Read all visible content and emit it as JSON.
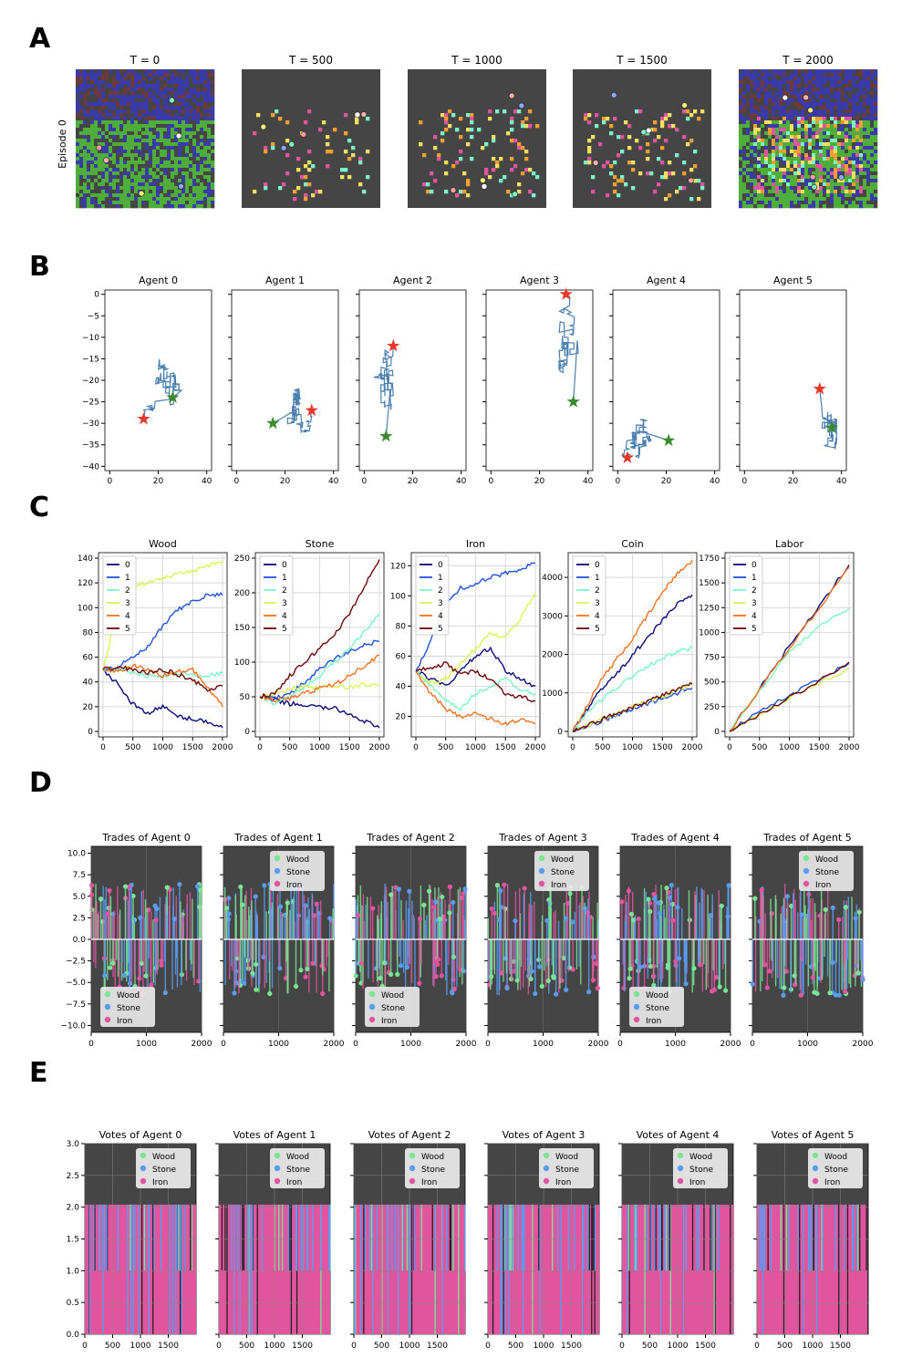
{
  "colors": {
    "dark_bg": "#454545",
    "path": "#4a7fb0",
    "star_start": "#e8382c",
    "star_end": "#3b8a2f",
    "grid": "#cccccc",
    "legend_wood": "#7be495",
    "legend_stone": "#5a9cf0",
    "legend_iron": "#e0559e",
    "agent_colors": [
      "#0d0d7a",
      "#2152d9",
      "#7cf5c9",
      "#d6f55a",
      "#f0731f",
      "#6b0a0a"
    ]
  },
  "panels": {
    "A": {
      "label": "A",
      "ylabel": "Episode 0",
      "titles": [
        "T = 0",
        "T = 500",
        "T = 1000",
        "T = 1500",
        "T = 2000"
      ]
    },
    "B": {
      "label": "B",
      "titles": [
        "Agent 0",
        "Agent 1",
        "Agent 2",
        "Agent 3",
        "Agent 4",
        "Agent 5"
      ],
      "xticks": [
        "0",
        "20",
        "40"
      ],
      "yticks": [
        "0",
        "−5",
        "−10",
        "−15",
        "−20",
        "−25",
        "−30",
        "−35",
        "−40"
      ]
    },
    "C": {
      "label": "C",
      "legend": [
        "0",
        "1",
        "2",
        "3",
        "4",
        "5"
      ]
    },
    "D": {
      "label": "D",
      "titles": [
        "Trades of Agent 0",
        "Trades of Agent 1",
        "Trades of Agent 2",
        "Trades of Agent 3",
        "Trades of Agent 4",
        "Trades of Agent 5"
      ],
      "legend": [
        "Wood",
        "Stone",
        "Iron"
      ],
      "yticks": [
        "10.0",
        "7.5",
        "5.0",
        "2.5",
        "0.0",
        "−2.5",
        "−5.0",
        "−7.5",
        "−10.0"
      ],
      "xticks": [
        "0",
        "1000",
        "2000"
      ]
    },
    "E": {
      "label": "E",
      "titles": [
        "Votes of Agent 0",
        "Votes of Agent 1",
        "Votes of Agent 2",
        "Votes of Agent 3",
        "Votes of Agent 4",
        "Votes of Agent 5"
      ],
      "legend": [
        "Wood",
        "Stone",
        "Iron"
      ],
      "yticks": [
        "3.0",
        "2.5",
        "2.0",
        "1.5",
        "1.0",
        "0.5",
        "0.0"
      ],
      "xticks": [
        "0",
        "500",
        "1000",
        "1500"
      ]
    }
  },
  "chart_data": [
    {
      "type": "line",
      "title": "Wood",
      "xlim": [
        0,
        2000
      ],
      "ylim": [
        0,
        140
      ],
      "xticks": [
        0,
        500,
        1000,
        1500,
        2000
      ],
      "yticks": [
        0,
        20,
        40,
        60,
        80,
        100,
        120,
        140
      ],
      "series": [
        {
          "name": "0",
          "x": [
            0,
            250,
            500,
            750,
            1000,
            1250,
            1500,
            1750,
            2000
          ],
          "y": [
            50,
            38,
            22,
            15,
            20,
            12,
            10,
            8,
            3
          ]
        },
        {
          "name": "1",
          "x": [
            0,
            250,
            500,
            750,
            1000,
            1250,
            1500,
            1750,
            2000
          ],
          "y": [
            50,
            52,
            60,
            68,
            85,
            98,
            105,
            110,
            110
          ]
        },
        {
          "name": "2",
          "x": [
            0,
            250,
            500,
            750,
            1000,
            1250,
            1500,
            1750,
            2000
          ],
          "y": [
            50,
            50,
            48,
            45,
            44,
            47,
            46,
            45,
            47
          ]
        },
        {
          "name": "3",
          "x": [
            0,
            100,
            250,
            500,
            750,
            1000,
            1250,
            1500,
            1750,
            2000
          ],
          "y": [
            50,
            68,
            110,
            118,
            120,
            124,
            127,
            130,
            133,
            138
          ]
        },
        {
          "name": "4",
          "x": [
            0,
            250,
            500,
            750,
            1000,
            1250,
            1500,
            1750,
            2000
          ],
          "y": [
            50,
            48,
            53,
            50,
            45,
            48,
            50,
            35,
            20
          ]
        },
        {
          "name": "5",
          "x": [
            0,
            250,
            500,
            750,
            1000,
            1250,
            1500,
            1750,
            2000
          ],
          "y": [
            50,
            52,
            50,
            47,
            50,
            46,
            42,
            33,
            37
          ]
        }
      ]
    },
    {
      "type": "line",
      "title": "Stone",
      "xlim": [
        0,
        2000
      ],
      "ylim": [
        0,
        250
      ],
      "xticks": [
        0,
        500,
        1000,
        1500,
        2000
      ],
      "yticks": [
        0,
        50,
        100,
        150,
        200,
        250
      ],
      "series": [
        {
          "name": "0",
          "x": [
            0,
            250,
            500,
            750,
            1000,
            1250,
            1500,
            1750,
            2000
          ],
          "y": [
            50,
            45,
            40,
            38,
            35,
            33,
            25,
            15,
            5
          ]
        },
        {
          "name": "1",
          "x": [
            0,
            250,
            500,
            750,
            1000,
            1250,
            1500,
            1750,
            2000
          ],
          "y": [
            50,
            48,
            55,
            70,
            90,
            105,
            115,
            125,
            130
          ]
        },
        {
          "name": "2",
          "x": [
            0,
            250,
            500,
            750,
            1000,
            1250,
            1500,
            1750,
            2000
          ],
          "y": [
            50,
            40,
            50,
            65,
            80,
            100,
            120,
            145,
            170
          ]
        },
        {
          "name": "3",
          "x": [
            0,
            250,
            500,
            750,
            1000,
            1250,
            1500,
            1750,
            2000
          ],
          "y": [
            50,
            55,
            60,
            65,
            62,
            66,
            63,
            68,
            65
          ]
        },
        {
          "name": "4",
          "x": [
            0,
            250,
            500,
            750,
            1000,
            1250,
            1500,
            1750,
            2000
          ],
          "y": [
            50,
            45,
            48,
            55,
            62,
            68,
            80,
            95,
            110
          ]
        },
        {
          "name": "5",
          "x": [
            0,
            250,
            500,
            750,
            1000,
            1250,
            1500,
            1750,
            2000
          ],
          "y": [
            50,
            55,
            80,
            100,
            120,
            140,
            170,
            210,
            248
          ]
        }
      ]
    },
    {
      "type": "line",
      "title": "Iron",
      "xlim": [
        0,
        2000
      ],
      "ylim": [
        10,
        125
      ],
      "xticks": [
        0,
        500,
        1000,
        1500,
        2000
      ],
      "yticks": [
        20,
        40,
        60,
        80,
        100,
        120
      ],
      "series": [
        {
          "name": "0",
          "x": [
            0,
            250,
            500,
            750,
            1000,
            1250,
            1500,
            1750,
            2000
          ],
          "y": [
            50,
            45,
            40,
            50,
            60,
            65,
            50,
            45,
            40
          ]
        },
        {
          "name": "1",
          "x": [
            0,
            250,
            500,
            750,
            1000,
            1250,
            1500,
            1750,
            2000
          ],
          "y": [
            50,
            70,
            95,
            105,
            108,
            112,
            115,
            118,
            122
          ]
        },
        {
          "name": "2",
          "x": [
            0,
            250,
            500,
            750,
            1000,
            1250,
            1500,
            1750,
            2000
          ],
          "y": [
            50,
            40,
            30,
            25,
            35,
            40,
            45,
            38,
            35
          ]
        },
        {
          "name": "3",
          "x": [
            0,
            250,
            500,
            750,
            1000,
            1250,
            1500,
            1750,
            2000
          ],
          "y": [
            50,
            42,
            45,
            55,
            65,
            75,
            72,
            85,
            102
          ]
        },
        {
          "name": "4",
          "x": [
            0,
            250,
            500,
            750,
            1000,
            1250,
            1500,
            1750,
            2000
          ],
          "y": [
            50,
            35,
            25,
            20,
            22,
            18,
            15,
            18,
            15
          ]
        },
        {
          "name": "5",
          "x": [
            0,
            250,
            500,
            750,
            1000,
            1250,
            1500,
            1750,
            2000
          ],
          "y": [
            50,
            52,
            55,
            48,
            50,
            45,
            35,
            33,
            30
          ]
        }
      ]
    },
    {
      "type": "line",
      "title": "Coin",
      "xlim": [
        0,
        2000
      ],
      "ylim": [
        0,
        4500
      ],
      "xticks": [
        0,
        500,
        1000,
        1500,
        2000
      ],
      "yticks": [
        0,
        1000,
        2000,
        3000,
        4000
      ],
      "series": [
        {
          "name": "0",
          "x": [
            0,
            250,
            500,
            750,
            1000,
            1250,
            1500,
            1750,
            2000
          ],
          "y": [
            0,
            600,
            1150,
            1500,
            2000,
            2400,
            2900,
            3300,
            3550
          ]
        },
        {
          "name": "1",
          "x": [
            0,
            250,
            500,
            750,
            1000,
            1250,
            1500,
            1750,
            2000
          ],
          "y": [
            0,
            130,
            280,
            420,
            580,
            720,
            860,
            1000,
            1130
          ]
        },
        {
          "name": "2",
          "x": [
            0,
            250,
            500,
            750,
            1000,
            1250,
            1500,
            1750,
            2000
          ],
          "y": [
            0,
            500,
            850,
            1150,
            1450,
            1700,
            1900,
            2050,
            2180
          ]
        },
        {
          "name": "3",
          "x": [
            0,
            250,
            500,
            750,
            1000,
            1250,
            1500,
            1750,
            2000
          ],
          "y": [
            0,
            150,
            310,
            460,
            620,
            770,
            920,
            1070,
            1220
          ]
        },
        {
          "name": "4",
          "x": [
            0,
            250,
            500,
            750,
            1000,
            1250,
            1500,
            1750,
            2000
          ],
          "y": [
            0,
            700,
            1400,
            1900,
            2400,
            3000,
            3600,
            4100,
            4450
          ]
        },
        {
          "name": "5",
          "x": [
            0,
            250,
            500,
            750,
            1000,
            1250,
            1500,
            1750,
            2000
          ],
          "y": [
            0,
            160,
            320,
            480,
            640,
            790,
            940,
            1080,
            1230
          ]
        }
      ]
    },
    {
      "type": "line",
      "title": "Labor",
      "xlim": [
        0,
        2000
      ],
      "ylim": [
        0,
        1750
      ],
      "xticks": [
        0,
        500,
        1000,
        1500,
        2000
      ],
      "yticks": [
        0,
        250,
        500,
        750,
        1000,
        1250,
        1500,
        1750
      ],
      "series": [
        {
          "name": "0",
          "x": [
            0,
            500,
            1000,
            1500,
            2000
          ],
          "y": [
            0,
            430,
            860,
            1270,
            1680
          ]
        },
        {
          "name": "1",
          "x": [
            0,
            500,
            1000,
            1500,
            2000
          ],
          "y": [
            0,
            200,
            360,
            530,
            690
          ]
        },
        {
          "name": "2",
          "x": [
            0,
            500,
            1000,
            1500,
            2000
          ],
          "y": [
            0,
            420,
            800,
            1060,
            1240
          ]
        },
        {
          "name": "3",
          "x": [
            0,
            500,
            1000,
            1500,
            2000
          ],
          "y": [
            0,
            170,
            340,
            490,
            640
          ]
        },
        {
          "name": "4",
          "x": [
            0,
            500,
            1000,
            1500,
            2000
          ],
          "y": [
            0,
            420,
            840,
            1250,
            1660
          ]
        },
        {
          "name": "5",
          "x": [
            0,
            500,
            1000,
            1500,
            2000
          ],
          "y": [
            0,
            170,
            340,
            510,
            700
          ]
        }
      ]
    }
  ]
}
